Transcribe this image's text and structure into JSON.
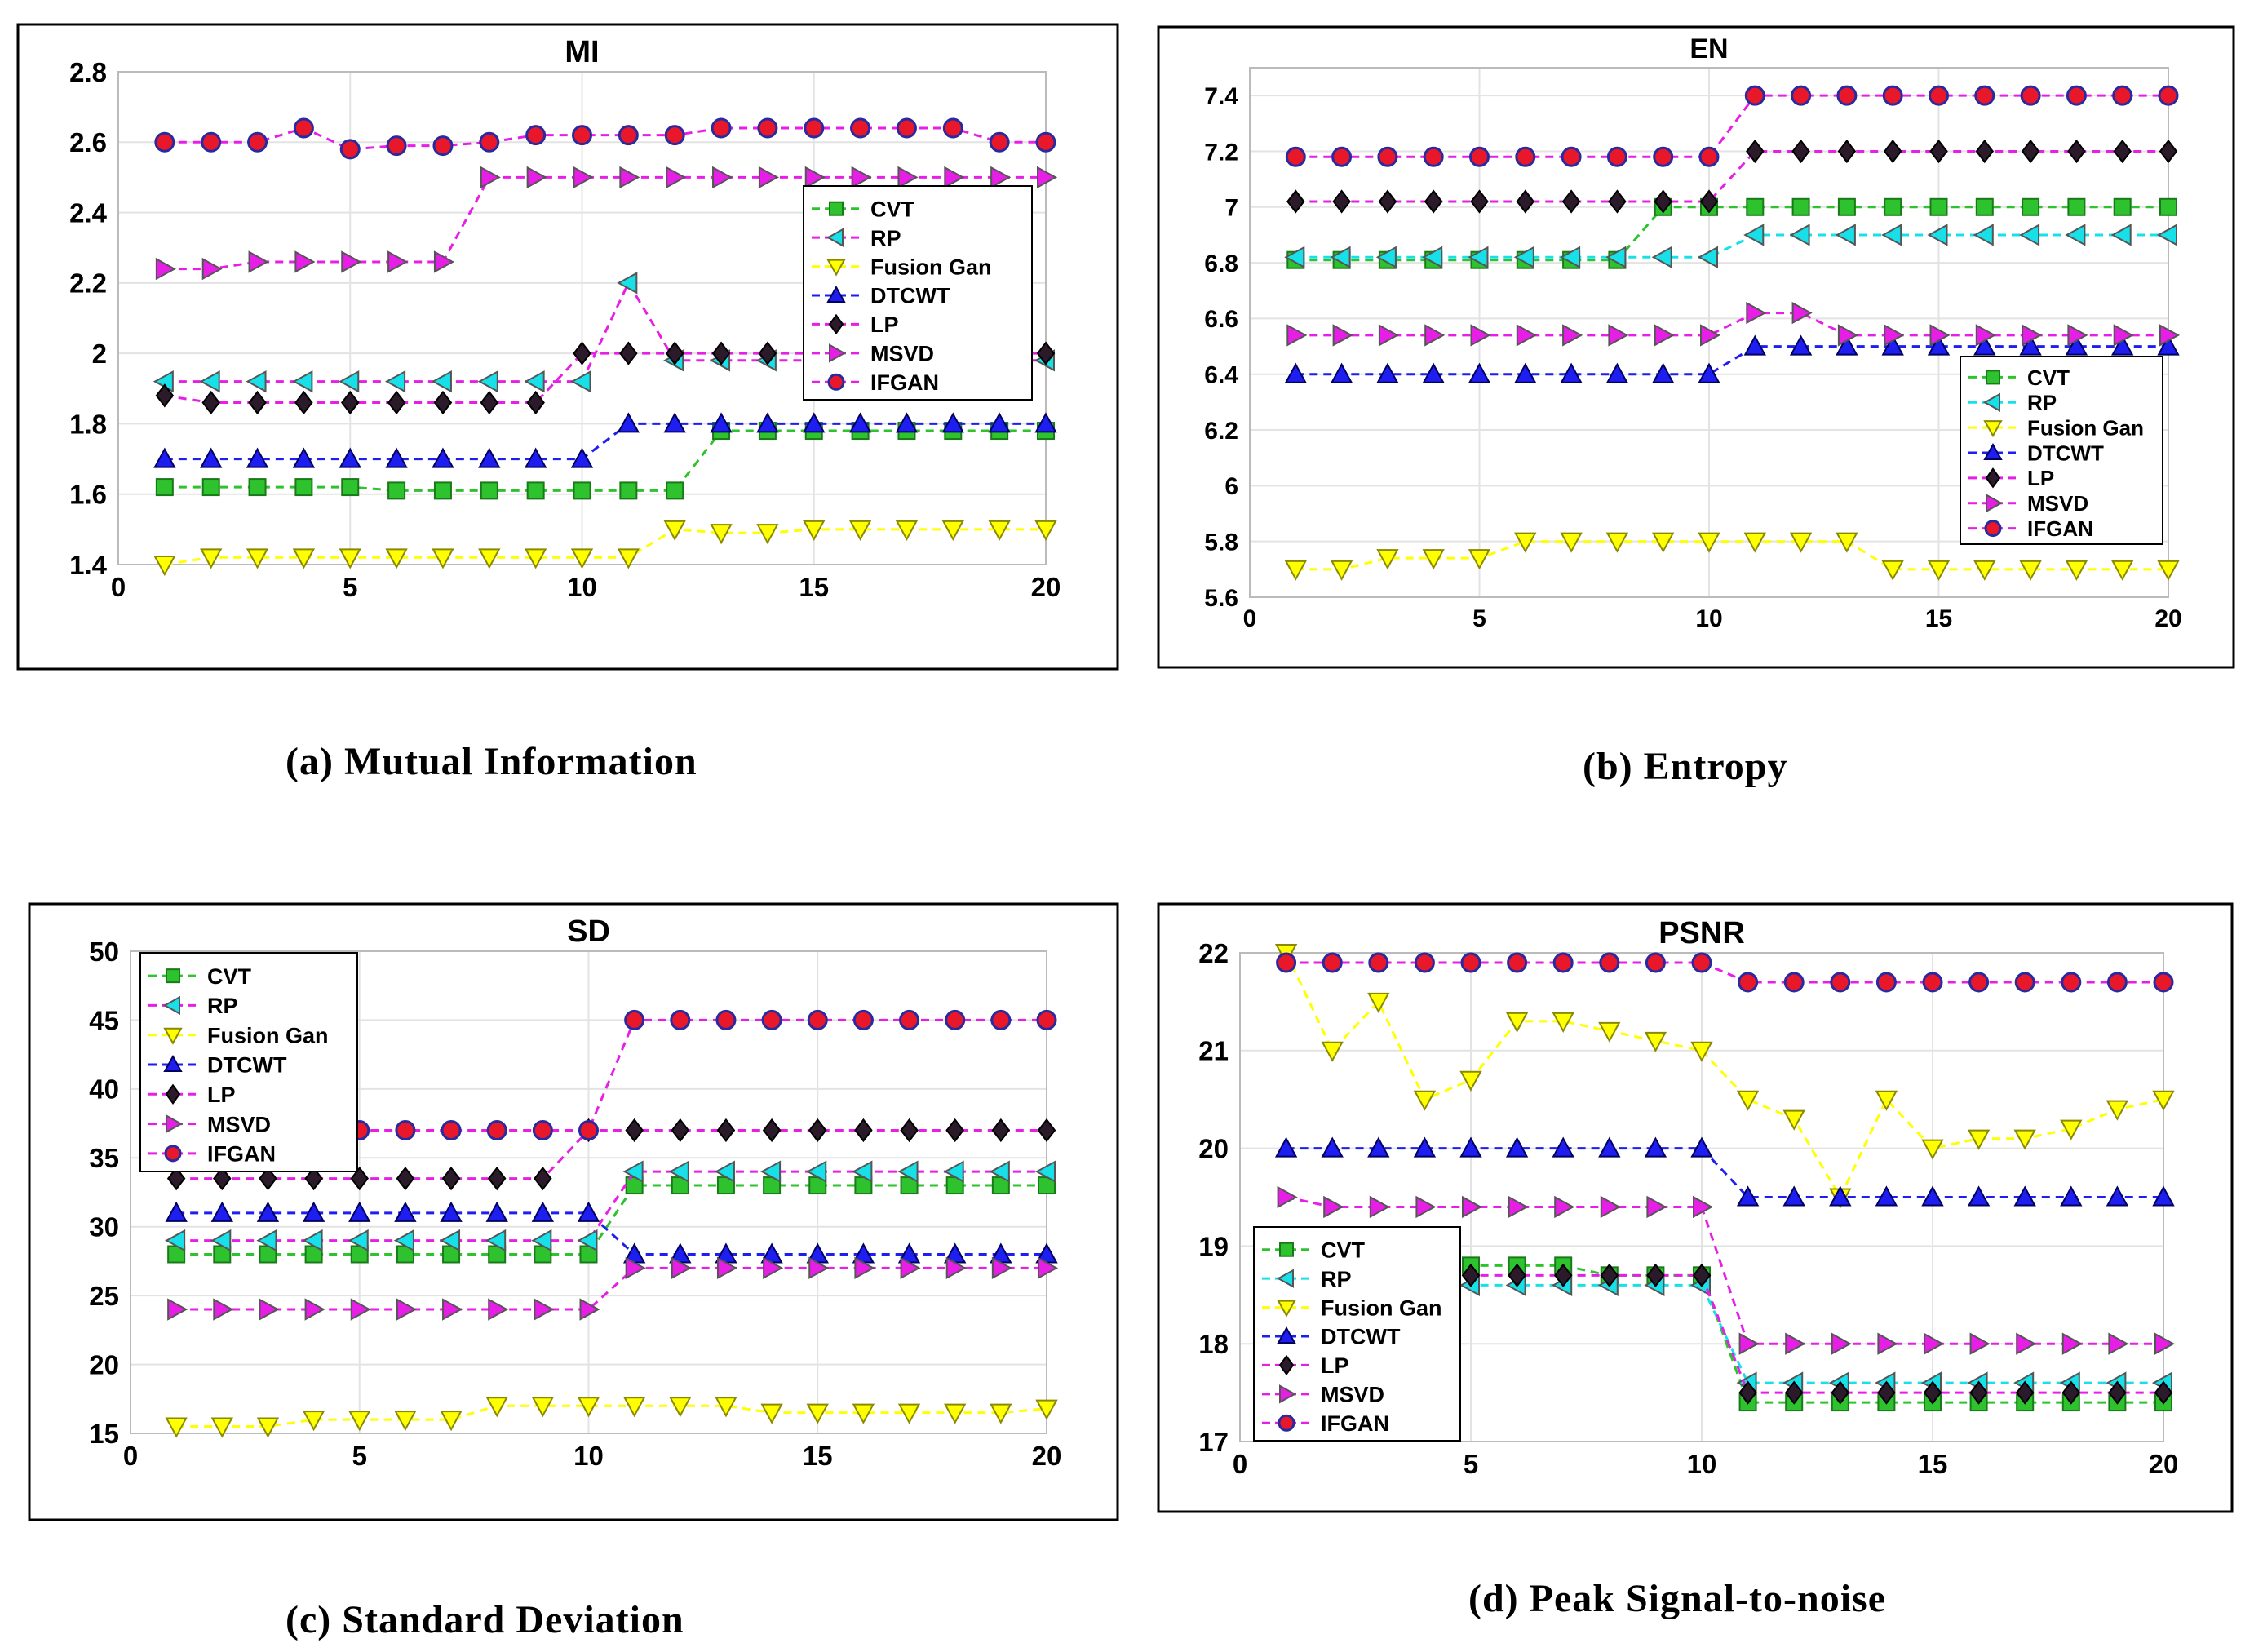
{
  "captions": {
    "a": "(a)   Mutual Information",
    "b": "(b)   Entropy",
    "c": "(c)    Standard Deviation",
    "d": "(d) Peak Signal-to-noise"
  },
  "colors": {
    "CVT": "#2ec22e",
    "RP": "#18e0e8",
    "Fusion Gan": "#ffff00",
    "DTCWT": "#1e1ef0",
    "LP": "#2a1a2a",
    "MSVD": "#e61ee6",
    "IFGAN": "#e8182a"
  },
  "chart_data": [
    {
      "type": "line",
      "title": "MI",
      "xlim": [
        0,
        20
      ],
      "ylim": [
        1.4,
        2.8
      ],
      "xticks": [
        0,
        5,
        10,
        15,
        20
      ],
      "yticks": [
        1.4,
        1.6,
        1.8,
        2,
        2.2,
        2.4,
        2.6,
        2.8
      ],
      "x": [
        1,
        2,
        3,
        4,
        5,
        6,
        7,
        8,
        9,
        10,
        11,
        12,
        13,
        14,
        15,
        16,
        17,
        18,
        19,
        20
      ],
      "legend": "right-middle",
      "grid": true,
      "series": [
        {
          "name": "CVT",
          "line": "#2ec22e",
          "marker": "square",
          "values": [
            1.62,
            1.62,
            1.62,
            1.62,
            1.62,
            1.61,
            1.61,
            1.61,
            1.61,
            1.61,
            1.61,
            1.61,
            1.78,
            1.78,
            1.78,
            1.78,
            1.78,
            1.78,
            1.78,
            1.78
          ]
        },
        {
          "name": "RP",
          "line": "#e61ee6",
          "marker": "tri-left",
          "values": [
            1.92,
            1.92,
            1.92,
            1.92,
            1.92,
            1.92,
            1.92,
            1.92,
            1.92,
            1.92,
            2.2,
            1.98,
            1.98,
            1.98,
            1.98,
            1.98,
            1.98,
            1.98,
            1.98,
            1.98
          ]
        },
        {
          "name": "Fusion Gan",
          "line": "#ffff00",
          "marker": "tri-down",
          "values": [
            1.4,
            1.42,
            1.42,
            1.42,
            1.42,
            1.42,
            1.42,
            1.42,
            1.42,
            1.42,
            1.42,
            1.5,
            1.49,
            1.49,
            1.5,
            1.5,
            1.5,
            1.5,
            1.5,
            1.5
          ]
        },
        {
          "name": "DTCWT",
          "line": "#1e1ef0",
          "marker": "tri-up",
          "values": [
            1.7,
            1.7,
            1.7,
            1.7,
            1.7,
            1.7,
            1.7,
            1.7,
            1.7,
            1.7,
            1.8,
            1.8,
            1.8,
            1.8,
            1.8,
            1.8,
            1.8,
            1.8,
            1.8,
            1.8
          ]
        },
        {
          "name": "LP",
          "line": "#e61ee6",
          "marker": "diamond",
          "values": [
            1.88,
            1.86,
            1.86,
            1.86,
            1.86,
            1.86,
            1.86,
            1.86,
            1.86,
            2.0,
            2.0,
            2.0,
            2.0,
            2.0,
            2.0,
            2.0,
            2.0,
            2.0,
            2.0,
            2.0
          ]
        },
        {
          "name": "MSVD",
          "line": "#e61ee6",
          "marker": "tri-right",
          "values": [
            2.24,
            2.24,
            2.26,
            2.26,
            2.26,
            2.26,
            2.26,
            2.5,
            2.5,
            2.5,
            2.5,
            2.5,
            2.5,
            2.5,
            2.5,
            2.5,
            2.5,
            2.5,
            2.5,
            2.5
          ]
        },
        {
          "name": "IFGAN",
          "line": "#e61ee6",
          "marker": "circle",
          "values": [
            2.6,
            2.6,
            2.6,
            2.64,
            2.58,
            2.59,
            2.59,
            2.6,
            2.62,
            2.62,
            2.62,
            2.62,
            2.64,
            2.64,
            2.64,
            2.64,
            2.64,
            2.64,
            2.6,
            2.6
          ]
        }
      ]
    },
    {
      "type": "line",
      "title": "EN",
      "xlim": [
        0,
        20
      ],
      "ylim": [
        5.6,
        7.5
      ],
      "xticks": [
        0,
        5,
        10,
        15,
        20
      ],
      "yticks": [
        5.6,
        5.8,
        6,
        6.2,
        6.4,
        6.6,
        6.8,
        7,
        7.2,
        7.4
      ],
      "x": [
        1,
        2,
        3,
        4,
        5,
        6,
        7,
        8,
        9,
        10,
        11,
        12,
        13,
        14,
        15,
        16,
        17,
        18,
        19,
        20
      ],
      "legend": "bottom-right",
      "grid": true,
      "series": [
        {
          "name": "CVT",
          "line": "#2ec22e",
          "marker": "square",
          "values": [
            6.81,
            6.81,
            6.81,
            6.81,
            6.81,
            6.81,
            6.81,
            6.81,
            7.0,
            7.0,
            7.0,
            7.0,
            7.0,
            7.0,
            7.0,
            7.0,
            7.0,
            7.0,
            7.0,
            7.0
          ]
        },
        {
          "name": "RP",
          "line": "#18e0e8",
          "marker": "tri-left",
          "values": [
            6.82,
            6.82,
            6.82,
            6.82,
            6.82,
            6.82,
            6.82,
            6.82,
            6.82,
            6.82,
            6.9,
            6.9,
            6.9,
            6.9,
            6.9,
            6.9,
            6.9,
            6.9,
            6.9,
            6.9
          ]
        },
        {
          "name": "Fusion Gan",
          "line": "#ffff00",
          "marker": "tri-down",
          "values": [
            5.7,
            5.7,
            5.74,
            5.74,
            5.74,
            5.8,
            5.8,
            5.8,
            5.8,
            5.8,
            5.8,
            5.8,
            5.8,
            5.7,
            5.7,
            5.7,
            5.7,
            5.7,
            5.7,
            5.7
          ]
        },
        {
          "name": "DTCWT",
          "line": "#1e1ef0",
          "marker": "tri-up",
          "values": [
            6.4,
            6.4,
            6.4,
            6.4,
            6.4,
            6.4,
            6.4,
            6.4,
            6.4,
            6.4,
            6.5,
            6.5,
            6.5,
            6.5,
            6.5,
            6.5,
            6.5,
            6.5,
            6.5,
            6.5
          ]
        },
        {
          "name": "LP",
          "line": "#e61ee6",
          "marker": "diamond",
          "values": [
            7.02,
            7.02,
            7.02,
            7.02,
            7.02,
            7.02,
            7.02,
            7.02,
            7.02,
            7.02,
            7.2,
            7.2,
            7.2,
            7.2,
            7.2,
            7.2,
            7.2,
            7.2,
            7.2,
            7.2
          ]
        },
        {
          "name": "MSVD",
          "line": "#e61ee6",
          "marker": "tri-right",
          "values": [
            6.54,
            6.54,
            6.54,
            6.54,
            6.54,
            6.54,
            6.54,
            6.54,
            6.54,
            6.54,
            6.62,
            6.62,
            6.54,
            6.54,
            6.54,
            6.54,
            6.54,
            6.54,
            6.54,
            6.54
          ]
        },
        {
          "name": "IFGAN",
          "line": "#e61ee6",
          "marker": "circle",
          "values": [
            7.18,
            7.18,
            7.18,
            7.18,
            7.18,
            7.18,
            7.18,
            7.18,
            7.18,
            7.18,
            7.4,
            7.4,
            7.4,
            7.4,
            7.4,
            7.4,
            7.4,
            7.4,
            7.4,
            7.4
          ]
        }
      ]
    },
    {
      "type": "line",
      "title": "SD",
      "xlim": [
        0,
        20
      ],
      "ylim": [
        15,
        50
      ],
      "xticks": [
        0,
        5,
        10,
        15,
        20
      ],
      "yticks": [
        15,
        20,
        25,
        30,
        35,
        40,
        45,
        50
      ],
      "x": [
        1,
        2,
        3,
        4,
        5,
        6,
        7,
        8,
        9,
        10,
        11,
        12,
        13,
        14,
        15,
        16,
        17,
        18,
        19,
        20
      ],
      "legend": "top-left",
      "grid": true,
      "series": [
        {
          "name": "CVT",
          "line": "#2ec22e",
          "marker": "square",
          "values": [
            28,
            28,
            28,
            28,
            28,
            28,
            28,
            28,
            28,
            28,
            33,
            33,
            33,
            33,
            33,
            33,
            33,
            33,
            33,
            33
          ]
        },
        {
          "name": "RP",
          "line": "#e61ee6",
          "marker": "tri-left",
          "values": [
            29,
            29,
            29,
            29,
            29,
            29,
            29,
            29,
            29,
            29,
            34,
            34,
            34,
            34,
            34,
            34,
            34,
            34,
            34,
            34
          ]
        },
        {
          "name": "Fusion Gan",
          "line": "#ffff00",
          "marker": "tri-down",
          "values": [
            15.5,
            15.5,
            15.5,
            16,
            16,
            16,
            16,
            17,
            17,
            17,
            17,
            17,
            17,
            16.5,
            16.5,
            16.5,
            16.5,
            16.5,
            16.5,
            16.8
          ]
        },
        {
          "name": "DTCWT",
          "line": "#1e1ef0",
          "marker": "tri-up",
          "values": [
            31,
            31,
            31,
            31,
            31,
            31,
            31,
            31,
            31,
            31,
            28,
            28,
            28,
            28,
            28,
            28,
            28,
            28,
            28,
            28
          ]
        },
        {
          "name": "LP",
          "line": "#e61ee6",
          "marker": "diamond",
          "values": [
            33.5,
            33.5,
            33.5,
            33.5,
            33.5,
            33.5,
            33.5,
            33.5,
            33.5,
            37,
            37,
            37,
            37,
            37,
            37,
            37,
            37,
            37,
            37,
            37
          ]
        },
        {
          "name": "MSVD",
          "line": "#e61ee6",
          "marker": "tri-right",
          "values": [
            24,
            24,
            24,
            24,
            24,
            24,
            24,
            24,
            24,
            24,
            27,
            27,
            27,
            27,
            27,
            27,
            27,
            27,
            27,
            27
          ]
        },
        {
          "name": "IFGAN",
          "line": "#e61ee6",
          "marker": "circle",
          "values": [
            37,
            37,
            37,
            37,
            37,
            37,
            37,
            37,
            37,
            37,
            45,
            45,
            45,
            45,
            45,
            45,
            45,
            45,
            45,
            45
          ]
        }
      ]
    },
    {
      "type": "line",
      "title": "PSNR",
      "xlim": [
        0,
        20
      ],
      "ylim": [
        17,
        22
      ],
      "xticks": [
        0,
        5,
        10,
        15,
        20
      ],
      "yticks": [
        17,
        18,
        19,
        20,
        21,
        22
      ],
      "x": [
        1,
        2,
        3,
        4,
        5,
        6,
        7,
        8,
        9,
        10,
        11,
        12,
        13,
        14,
        15,
        16,
        17,
        18,
        19,
        20
      ],
      "legend": "bottom-left",
      "grid": true,
      "series": [
        {
          "name": "CVT",
          "line": "#2ec22e",
          "marker": "square",
          "values": [
            18.8,
            18.8,
            18.8,
            18.8,
            18.8,
            18.8,
            18.8,
            18.7,
            18.7,
            18.7,
            17.4,
            17.4,
            17.4,
            17.4,
            17.4,
            17.4,
            17.4,
            17.4,
            17.4,
            17.4
          ]
        },
        {
          "name": "RP",
          "line": "#18e0e8",
          "marker": "tri-left",
          "values": [
            18.6,
            18.6,
            18.6,
            18.6,
            18.6,
            18.6,
            18.6,
            18.6,
            18.6,
            18.6,
            17.6,
            17.6,
            17.6,
            17.6,
            17.6,
            17.6,
            17.6,
            17.6,
            17.6,
            17.6
          ]
        },
        {
          "name": "Fusion Gan",
          "line": "#ffff00",
          "marker": "tri-down",
          "values": [
            22,
            21,
            21.5,
            20.5,
            20.7,
            21.3,
            21.3,
            21.2,
            21.1,
            21,
            20.5,
            20.3,
            19.5,
            20.5,
            20,
            20.1,
            20.1,
            20.2,
            20.4,
            20.5
          ]
        },
        {
          "name": "DTCWT",
          "line": "#1e1ef0",
          "marker": "tri-up",
          "values": [
            20,
            20,
            20,
            20,
            20,
            20,
            20,
            20,
            20,
            20,
            19.5,
            19.5,
            19.5,
            19.5,
            19.5,
            19.5,
            19.5,
            19.5,
            19.5,
            19.5
          ]
        },
        {
          "name": "LP",
          "line": "#e61ee6",
          "marker": "diamond",
          "values": [
            18.7,
            18.7,
            18.7,
            18.7,
            18.7,
            18.7,
            18.7,
            18.7,
            18.7,
            18.7,
            17.5,
            17.5,
            17.5,
            17.5,
            17.5,
            17.5,
            17.5,
            17.5,
            17.5,
            17.5
          ]
        },
        {
          "name": "MSVD",
          "line": "#e61ee6",
          "marker": "tri-right",
          "values": [
            19.5,
            19.4,
            19.4,
            19.4,
            19.4,
            19.4,
            19.4,
            19.4,
            19.4,
            19.4,
            18,
            18,
            18,
            18,
            18,
            18,
            18,
            18,
            18,
            18
          ]
        },
        {
          "name": "IFGAN",
          "line": "#e61ee6",
          "marker": "circle",
          "values": [
            21.9,
            21.9,
            21.9,
            21.9,
            21.9,
            21.9,
            21.9,
            21.9,
            21.9,
            21.9,
            21.7,
            21.7,
            21.7,
            21.7,
            21.7,
            21.7,
            21.7,
            21.7,
            21.7,
            21.7
          ]
        }
      ]
    }
  ]
}
